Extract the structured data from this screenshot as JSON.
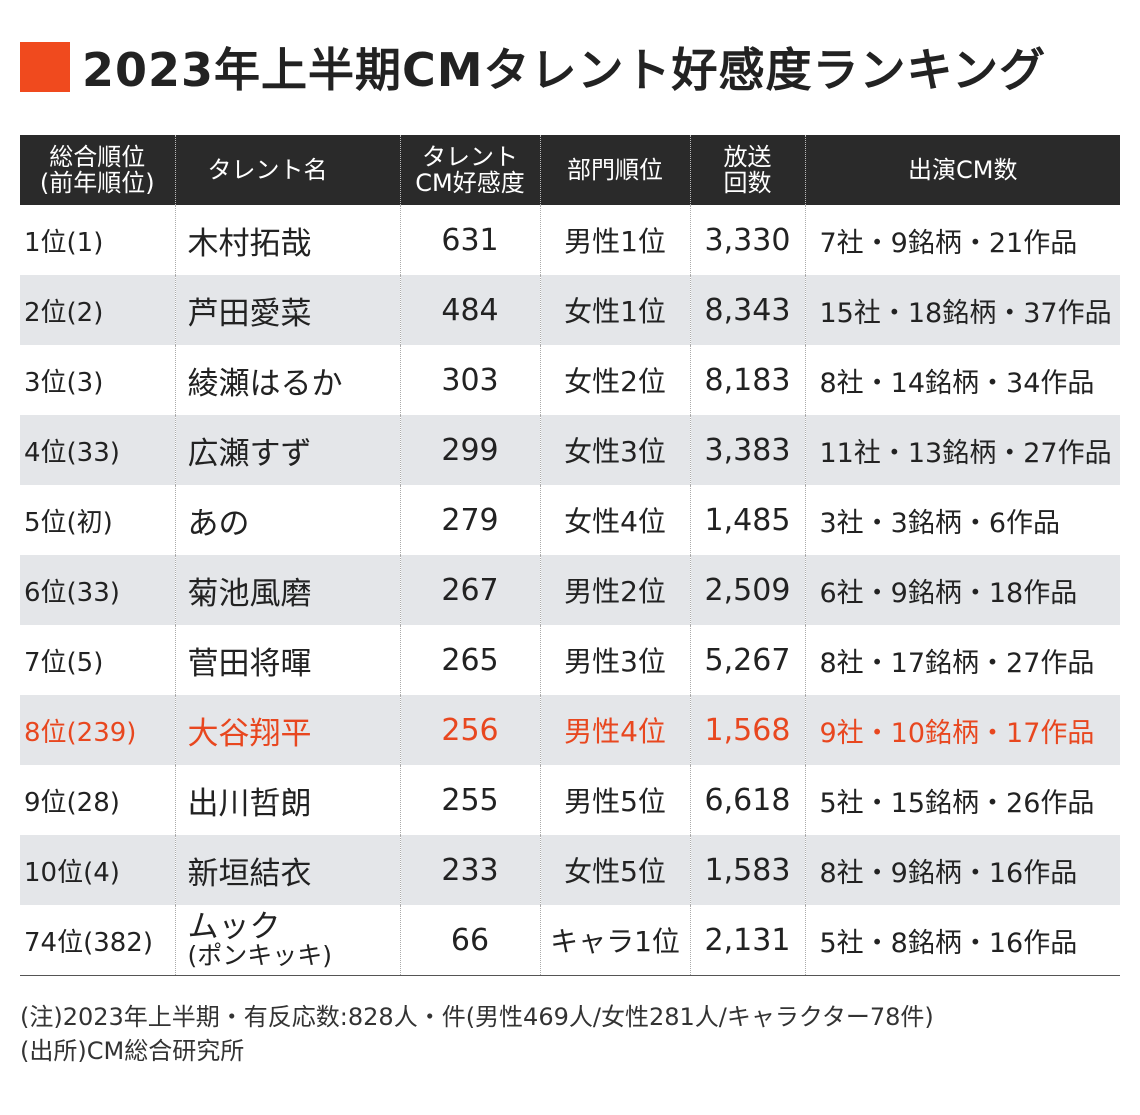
{
  "colors": {
    "accent": "#f04a1e",
    "highlight": "#e8471f",
    "header_bg": "#2a2a2a",
    "stripe": "#e4e6e9"
  },
  "title": "2023年上半期CMタレント好感度ランキング",
  "chart_data": {
    "type": "table",
    "title": "2023年上半期CMタレント好感度ランキング",
    "columns": [
      {
        "lines": [
          "総合順位",
          "(前年順位)"
        ]
      },
      {
        "lines": [
          "タレント名"
        ]
      },
      {
        "lines": [
          "タレント",
          "CM好感度"
        ]
      },
      {
        "lines": [
          "部門順位"
        ]
      },
      {
        "lines": [
          "放送",
          "回数"
        ]
      },
      {
        "lines": [
          "出演CM数"
        ]
      }
    ],
    "rows": [
      {
        "rank": "1位(1)",
        "name": "木村拓哉",
        "name_sub": "",
        "score": 631,
        "division": "男性1位",
        "broadcasts": "3,330",
        "cm": "7社・9銘柄・21作品",
        "highlight": false
      },
      {
        "rank": "2位(2)",
        "name": "芦田愛菜",
        "name_sub": "",
        "score": 484,
        "division": "女性1位",
        "broadcasts": "8,343",
        "cm": "15社・18銘柄・37作品",
        "highlight": false
      },
      {
        "rank": "3位(3)",
        "name": "綾瀬はるか",
        "name_sub": "",
        "score": 303,
        "division": "女性2位",
        "broadcasts": "8,183",
        "cm": "8社・14銘柄・34作品",
        "highlight": false
      },
      {
        "rank": "4位(33)",
        "name": "広瀬すず",
        "name_sub": "",
        "score": 299,
        "division": "女性3位",
        "broadcasts": "3,383",
        "cm": "11社・13銘柄・27作品",
        "highlight": false
      },
      {
        "rank": "5位(初)",
        "name": "あの",
        "name_sub": "",
        "score": 279,
        "division": "女性4位",
        "broadcasts": "1,485",
        "cm": "3社・3銘柄・6作品",
        "highlight": false
      },
      {
        "rank": "6位(33)",
        "name": "菊池風磨",
        "name_sub": "",
        "score": 267,
        "division": "男性2位",
        "broadcasts": "2,509",
        "cm": "6社・9銘柄・18作品",
        "highlight": false
      },
      {
        "rank": "7位(5)",
        "name": "菅田将暉",
        "name_sub": "",
        "score": 265,
        "division": "男性3位",
        "broadcasts": "5,267",
        "cm": "8社・17銘柄・27作品",
        "highlight": false
      },
      {
        "rank": "8位(239)",
        "name": "大谷翔平",
        "name_sub": "",
        "score": 256,
        "division": "男性4位",
        "broadcasts": "1,568",
        "cm": "9社・10銘柄・17作品",
        "highlight": true
      },
      {
        "rank": "9位(28)",
        "name": "出川哲朗",
        "name_sub": "",
        "score": 255,
        "division": "男性5位",
        "broadcasts": "6,618",
        "cm": "5社・15銘柄・26作品",
        "highlight": false
      },
      {
        "rank": "10位(4)",
        "name": "新垣結衣",
        "name_sub": "",
        "score": 233,
        "division": "女性5位",
        "broadcasts": "1,583",
        "cm": "8社・9銘柄・16作品",
        "highlight": false
      },
      {
        "rank": "74位(382)",
        "name": "ムック",
        "name_sub": "(ポンキッキ)",
        "score": 66,
        "division": "キャラ1位",
        "broadcasts": "2,131",
        "cm": "5社・8銘柄・16作品",
        "highlight": false
      }
    ]
  },
  "notes": [
    "(注)2023年上半期・有反応数:828人・件(男性469人/女性281人/キャラクター78件)",
    "(出所)CM総合研究所"
  ]
}
